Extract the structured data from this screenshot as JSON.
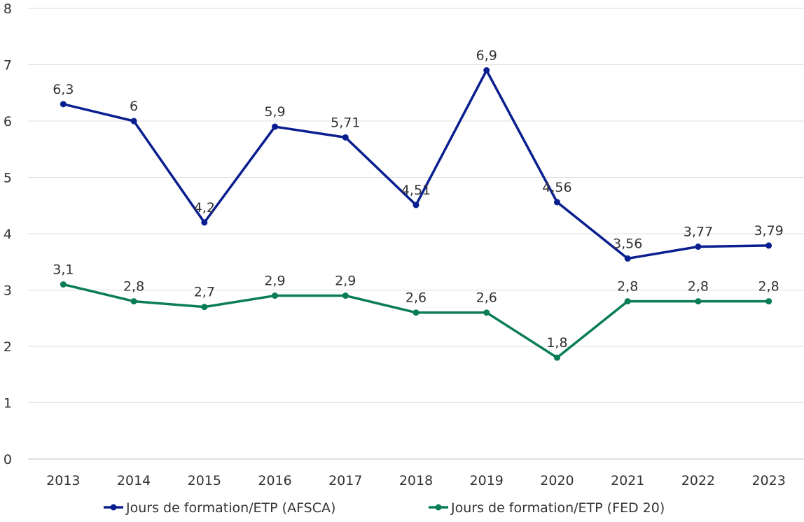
{
  "chart_data": {
    "type": "line",
    "title": "",
    "xlabel": "",
    "ylabel": "",
    "x": [
      "2013",
      "2014",
      "2015",
      "2016",
      "2017",
      "2018",
      "2019",
      "2020",
      "2021",
      "2022",
      "2023"
    ],
    "ylim": [
      0,
      8
    ],
    "yticks": [
      "0",
      "1",
      "2",
      "3",
      "4",
      "5",
      "6",
      "7",
      "8"
    ],
    "grid": true,
    "legend_position": "bottom",
    "series": [
      {
        "name": "Jours de formation/ETP (AFSCA)",
        "color": "#0a1f8f",
        "values": [
          6.3,
          6,
          4.2,
          5.9,
          5.71,
          4.51,
          6.9,
          4.56,
          3.56,
          3.77,
          3.79
        ],
        "labels": [
          "6,3",
          "6",
          "4,2",
          "5,9",
          "5,71",
          "4,51",
          "6,9",
          "4,56",
          "3,56",
          "3,77",
          "3,79"
        ]
      },
      {
        "name": "Jours de formation/ETP (FED 20)",
        "color": "#0a7d55",
        "values": [
          3.1,
          2.8,
          2.7,
          2.9,
          2.9,
          2.6,
          2.6,
          1.8,
          2.8,
          2.8,
          2.8
        ],
        "labels": [
          "3,1",
          "2,8",
          "2,7",
          "2,9",
          "2,9",
          "2,6",
          "2,6",
          "1,8",
          "2,8",
          "2,8",
          "2,8"
        ]
      }
    ]
  }
}
